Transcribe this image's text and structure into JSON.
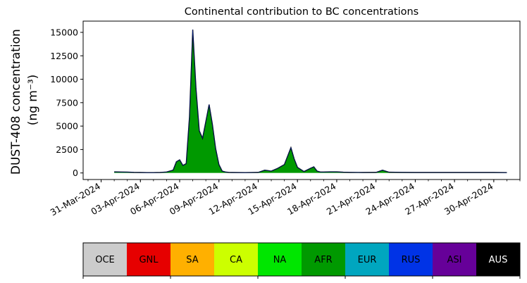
{
  "chart_data": {
    "type": "area",
    "title": "Continental contribution to BC concentrations",
    "ylabel_line1": "DUST-408 concentration",
    "ylabel_line2": "(ng m⁻³)",
    "xlabel": "",
    "ylim": [
      -700,
      16200
    ],
    "xlim": [
      "2024-03-29T15:00",
      "2024-05-02T00:00"
    ],
    "yticks": [
      0,
      2500,
      5000,
      7500,
      10000,
      12500,
      15000
    ],
    "ytick_labels": [
      "0",
      "2500",
      "5000",
      "7500",
      "10000",
      "12500",
      "15000"
    ],
    "xticks": [
      "2024-03-31",
      "2024-04-03",
      "2024-04-06",
      "2024-04-09",
      "2024-04-12",
      "2024-04-15",
      "2024-04-18",
      "2024-04-21",
      "2024-04-24",
      "2024-04-27",
      "2024-04-30"
    ],
    "xtick_labels": [
      "31-Mar-2024",
      "03-Apr-2024",
      "06-Apr-2024",
      "09-Apr-2024",
      "12-Apr-2024",
      "15-Apr-2024",
      "18-Apr-2024",
      "21-Apr-2024",
      "24-Apr-2024",
      "27-Apr-2024",
      "30-Apr-2024"
    ],
    "x": [
      "2024-04-01T00:00",
      "2024-04-01T12:00",
      "2024-04-02T00:00",
      "2024-04-02T12:00",
      "2024-04-03T00:00",
      "2024-04-03T12:00",
      "2024-04-04T00:00",
      "2024-04-04T12:00",
      "2024-04-05T00:00",
      "2024-04-05T12:00",
      "2024-04-05T18:00",
      "2024-04-06T00:00",
      "2024-04-06T06:00",
      "2024-04-06T12:00",
      "2024-04-06T18:00",
      "2024-04-07T00:00",
      "2024-04-07T06:00",
      "2024-04-07T12:00",
      "2024-04-07T18:00",
      "2024-04-08T00:00",
      "2024-04-08T06:00",
      "2024-04-08T12:00",
      "2024-04-08T18:00",
      "2024-04-09T00:00",
      "2024-04-09T06:00",
      "2024-04-09T12:00",
      "2024-04-09T18:00",
      "2024-04-10T00:00",
      "2024-04-11T00:00",
      "2024-04-12T00:00",
      "2024-04-12T12:00",
      "2024-04-13T00:00",
      "2024-04-13T12:00",
      "2024-04-14T00:00",
      "2024-04-14T12:00",
      "2024-04-14T18:00",
      "2024-04-15T00:00",
      "2024-04-15T12:00",
      "2024-04-16T00:00",
      "2024-04-16T06:00",
      "2024-04-16T12:00",
      "2024-04-16T18:00",
      "2024-04-17T00:00",
      "2024-04-17T12:00",
      "2024-04-18T00:00",
      "2024-04-18T12:00",
      "2024-04-19T00:00",
      "2024-04-20T00:00",
      "2024-04-21T00:00",
      "2024-04-21T12:00",
      "2024-04-22T00:00",
      "2024-04-23T00:00",
      "2024-04-24T00:00",
      "2024-04-25T00:00",
      "2024-04-26T00:00",
      "2024-04-27T00:00",
      "2024-04-28T00:00",
      "2024-04-29T00:00",
      "2024-04-30T00:00",
      "2024-05-01T00:00"
    ],
    "total": [
      120,
      100,
      90,
      60,
      50,
      40,
      40,
      50,
      100,
      300,
      1200,
      1400,
      800,
      1000,
      6000,
      15300,
      9000,
      4500,
      3700,
      5500,
      7300,
      5200,
      2600,
      900,
      200,
      100,
      60,
      50,
      40,
      60,
      300,
      200,
      500,
      900,
      2700,
      1500,
      600,
      150,
      500,
      650,
      200,
      100,
      100,
      120,
      120,
      80,
      60,
      50,
      60,
      300,
      80,
      60,
      50,
      50,
      50,
      50,
      50,
      50,
      50,
      40
    ],
    "series": [
      {
        "name": "OCE",
        "color": "#cccccc"
      },
      {
        "name": "GNL",
        "color": "#e60000"
      },
      {
        "name": "SA",
        "color": "#ffb000"
      },
      {
        "name": "CA",
        "color": "#ccff00"
      },
      {
        "name": "NA",
        "color": "#00e600"
      },
      {
        "name": "AFR",
        "color": "#009900"
      },
      {
        "name": "EUR",
        "color": "#00a6bf"
      },
      {
        "name": "RUS",
        "color": "#0033e6"
      },
      {
        "name": "ASI",
        "color": "#660099"
      },
      {
        "name": "AUS",
        "color": "#000000"
      }
    ],
    "legend_placement": "bottom",
    "grid": false
  }
}
